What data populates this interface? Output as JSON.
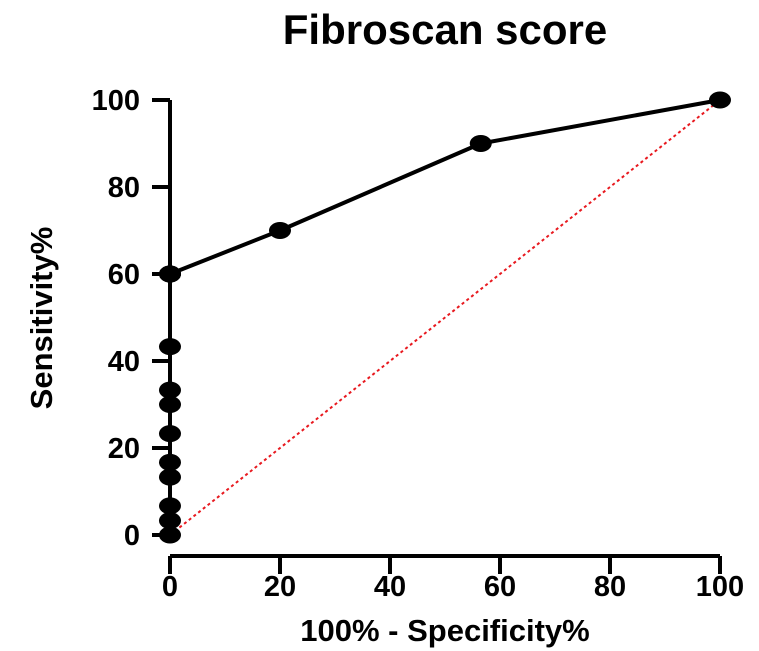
{
  "chart_data": {
    "type": "line",
    "title": "Fibroscan score",
    "xlabel": "100% - Specificity%",
    "ylabel": "Sensitivity%",
    "xlim": [
      0,
      100
    ],
    "ylim": [
      0,
      100
    ],
    "x_ticks": [
      "0",
      "20",
      "40",
      "60",
      "80",
      "100"
    ],
    "y_ticks": [
      "0",
      "20",
      "40",
      "60",
      "80",
      "100"
    ],
    "grid": false,
    "legend": "none",
    "series": [
      {
        "x": [
          0,
          0,
          0,
          0,
          0,
          0,
          0,
          0,
          0,
          0,
          0,
          0,
          20,
          56.5,
          100
        ],
        "y": [
          0,
          3.3,
          6.7,
          13.3,
          16.7,
          23.3,
          30,
          33.3,
          43.3,
          60,
          60,
          60,
          70,
          90,
          100
        ]
      }
    ],
    "reference_line": {
      "x": [
        0,
        100
      ],
      "y": [
        0,
        100
      ],
      "style": "dotted",
      "color": "#e8191f"
    },
    "colors": {
      "series": "#000000",
      "reference": "#e8191f"
    }
  }
}
